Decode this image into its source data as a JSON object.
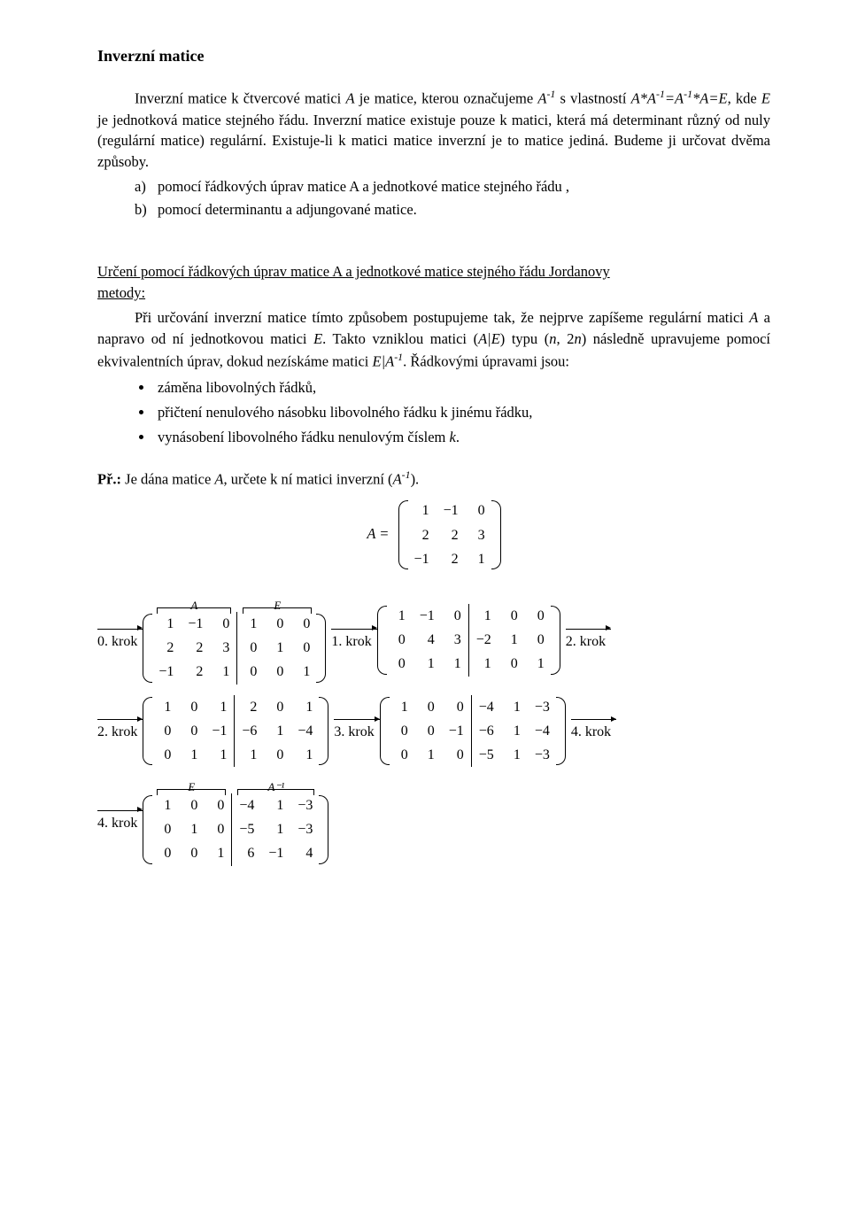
{
  "title": "Inverzní matice",
  "intro": {
    "p1_a": "Inverzní matice k čtvercové matici ",
    "A": "A",
    "p1_b": " je matice, kterou označujeme ",
    "Ainv": "A",
    "sup_m1": "-1",
    "p1_c": " s vlastností ",
    "rel": "A*A",
    "rel_b": "=A",
    "rel_c": "*A=E",
    "p1_d": ", kde ",
    "E": "E",
    "p1_e": " je jednotková matice stejného řádu. Inverzní matice existuje pouze k matici, která má determinant různý od nuly (regulární matice) regulární. Existuje-li k matici matice inverzní je to matice jediná. Budeme ji určovat dvěma způsoby."
  },
  "list_ab": {
    "a": "pomocí řádkových úprav matice A a jednotkové matice stejného řádu ,",
    "b": "pomocí determinantu a adjungované matice."
  },
  "section2": {
    "head_a": "Určení  pomocí  řádkových  úprav  matice  A  a  jednotkové  matice  stejného  řádu  Jordanovy ",
    "head_b": "metody:",
    "p_a": "Při  určování  inverzní  matice  tímto  způsobem  postupujeme  tak,  že  nejprve  zapíšeme regulární matici ",
    "A": "A",
    "p_b": " a napravo od ní jednotkovou matici ",
    "E": "E",
    "p_c": ". Takto vzniklou matici (",
    "AE": "A|E",
    "p_d": ") typu (",
    "n": "n",
    "p_e": ", 2",
    "p_f": ")  následně  upravujeme  pomocí  ekvivalentních  úprav,  dokud  nezískáme  matici  ",
    "EAinv": "E|A",
    "p_g": ". Řádkovými úpravami jsou:"
  },
  "bullets": {
    "b1": "záměna libovolných řádků,",
    "b2": "přičtení nenulového násobku libovolného řádku k jinému řádku,",
    "b3_a": "vynásobení libovolného řádku nenulovým číslem ",
    "b3_k": "k",
    "b3_b": "."
  },
  "example": {
    "pre": "Př.:",
    "txt_a": " Je dána matice ",
    "A": "A",
    "txt_b": ", určete k ní matici inverzní (",
    "Ainv": "A",
    "txt_c": ")."
  },
  "Aeq": "A =",
  "steps": {
    "s0": "0. krok",
    "s1": "1. krok",
    "s2": "2. krok",
    "s3": "3. krok",
    "s4": "4. krok"
  },
  "labels": {
    "A": "A",
    "E": "E",
    "Ainv": "A⁻¹"
  },
  "M_A": [
    [
      "1",
      "−1",
      "0"
    ],
    [
      "2",
      "2",
      "3"
    ],
    [
      "−1",
      "2",
      "1"
    ]
  ],
  "M0": {
    "L": [
      [
        "1",
        "−1",
        "0"
      ],
      [
        "2",
        "2",
        "3"
      ],
      [
        "−1",
        "2",
        "1"
      ]
    ],
    "R": [
      [
        "1",
        "0",
        "0"
      ],
      [
        "0",
        "1",
        "0"
      ],
      [
        "0",
        "0",
        "1"
      ]
    ]
  },
  "M1": {
    "L": [
      [
        "1",
        "−1",
        "0"
      ],
      [
        "0",
        "4",
        "3"
      ],
      [
        "0",
        "1",
        "1"
      ]
    ],
    "R": [
      [
        "1",
        "0",
        "0"
      ],
      [
        "−2",
        "1",
        "0"
      ],
      [
        "1",
        "0",
        "1"
      ]
    ]
  },
  "M2": {
    "L": [
      [
        "1",
        "0",
        "1"
      ],
      [
        "0",
        "0",
        "−1"
      ],
      [
        "0",
        "1",
        "1"
      ]
    ],
    "R": [
      [
        "2",
        "0",
        "1"
      ],
      [
        "−6",
        "1",
        "−4"
      ],
      [
        "1",
        "0",
        "1"
      ]
    ]
  },
  "M3": {
    "L": [
      [
        "1",
        "0",
        "0"
      ],
      [
        "0",
        "0",
        "−1"
      ],
      [
        "0",
        "1",
        "0"
      ]
    ],
    "R": [
      [
        "−4",
        "1",
        "−3"
      ],
      [
        "−6",
        "1",
        "−4"
      ],
      [
        "−5",
        "1",
        "−3"
      ]
    ]
  },
  "M4": {
    "L": [
      [
        "1",
        "0",
        "0"
      ],
      [
        "0",
        "1",
        "0"
      ],
      [
        "0",
        "0",
        "1"
      ]
    ],
    "R": [
      [
        "−4",
        "1",
        "−3"
      ],
      [
        "−5",
        "1",
        "−3"
      ],
      [
        "6",
        "−1",
        "4"
      ]
    ]
  }
}
